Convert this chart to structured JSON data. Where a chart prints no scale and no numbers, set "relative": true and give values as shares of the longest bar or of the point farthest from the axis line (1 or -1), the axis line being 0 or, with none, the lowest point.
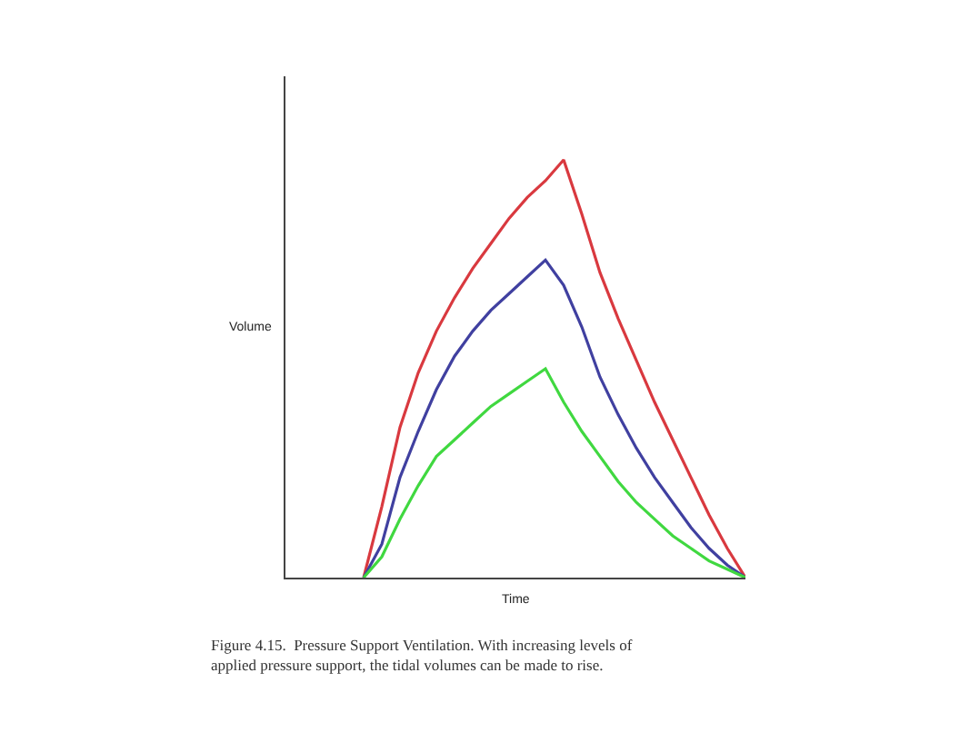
{
  "chart_data": {
    "type": "line",
    "relative": true,
    "xlabel": "Time",
    "ylabel": "Volume",
    "categories": [
      null,
      null,
      null,
      null,
      null,
      null,
      null,
      null,
      null,
      null,
      null,
      null,
      null,
      null,
      null,
      null,
      null,
      null,
      null,
      null,
      null,
      null,
      null,
      null,
      null,
      null
    ],
    "series": [
      {
        "color": "#d9393f",
        "values": [
          null,
          null,
          null,
          null,
          0,
          0.17,
          0.36,
          0.49,
          0.59,
          0.67,
          0.74,
          0.8,
          0.86,
          0.91,
          0.95,
          1.0,
          0.87,
          0.73,
          0.62,
          0.52,
          0.42,
          0.33,
          0.24,
          0.15,
          0.07,
          0
        ]
      },
      {
        "color": "#4040a0",
        "values": [
          null,
          null,
          null,
          null,
          0,
          0.08,
          0.24,
          0.35,
          0.45,
          0.53,
          0.59,
          0.64,
          0.68,
          0.72,
          0.76,
          0.7,
          0.6,
          0.48,
          0.39,
          0.31,
          0.24,
          0.18,
          0.12,
          0.07,
          0.03,
          0
        ]
      },
      {
        "color": "#40d840",
        "values": [
          null,
          null,
          null,
          null,
          0,
          0.05,
          0.14,
          0.22,
          0.29,
          0.33,
          0.37,
          0.41,
          0.44,
          0.47,
          0.5,
          0.42,
          0.35,
          0.29,
          0.23,
          0.18,
          0.14,
          0.1,
          0.07,
          0.04,
          0.02,
          0
        ]
      }
    ],
    "annotations": [
      "Figure 4.15.  Pressure Support Ventilation. With increasing levels of\napplied pressure support, the tidal volumes can be made to rise."
    ],
    "marker": "none",
    "line_style": "solid"
  }
}
